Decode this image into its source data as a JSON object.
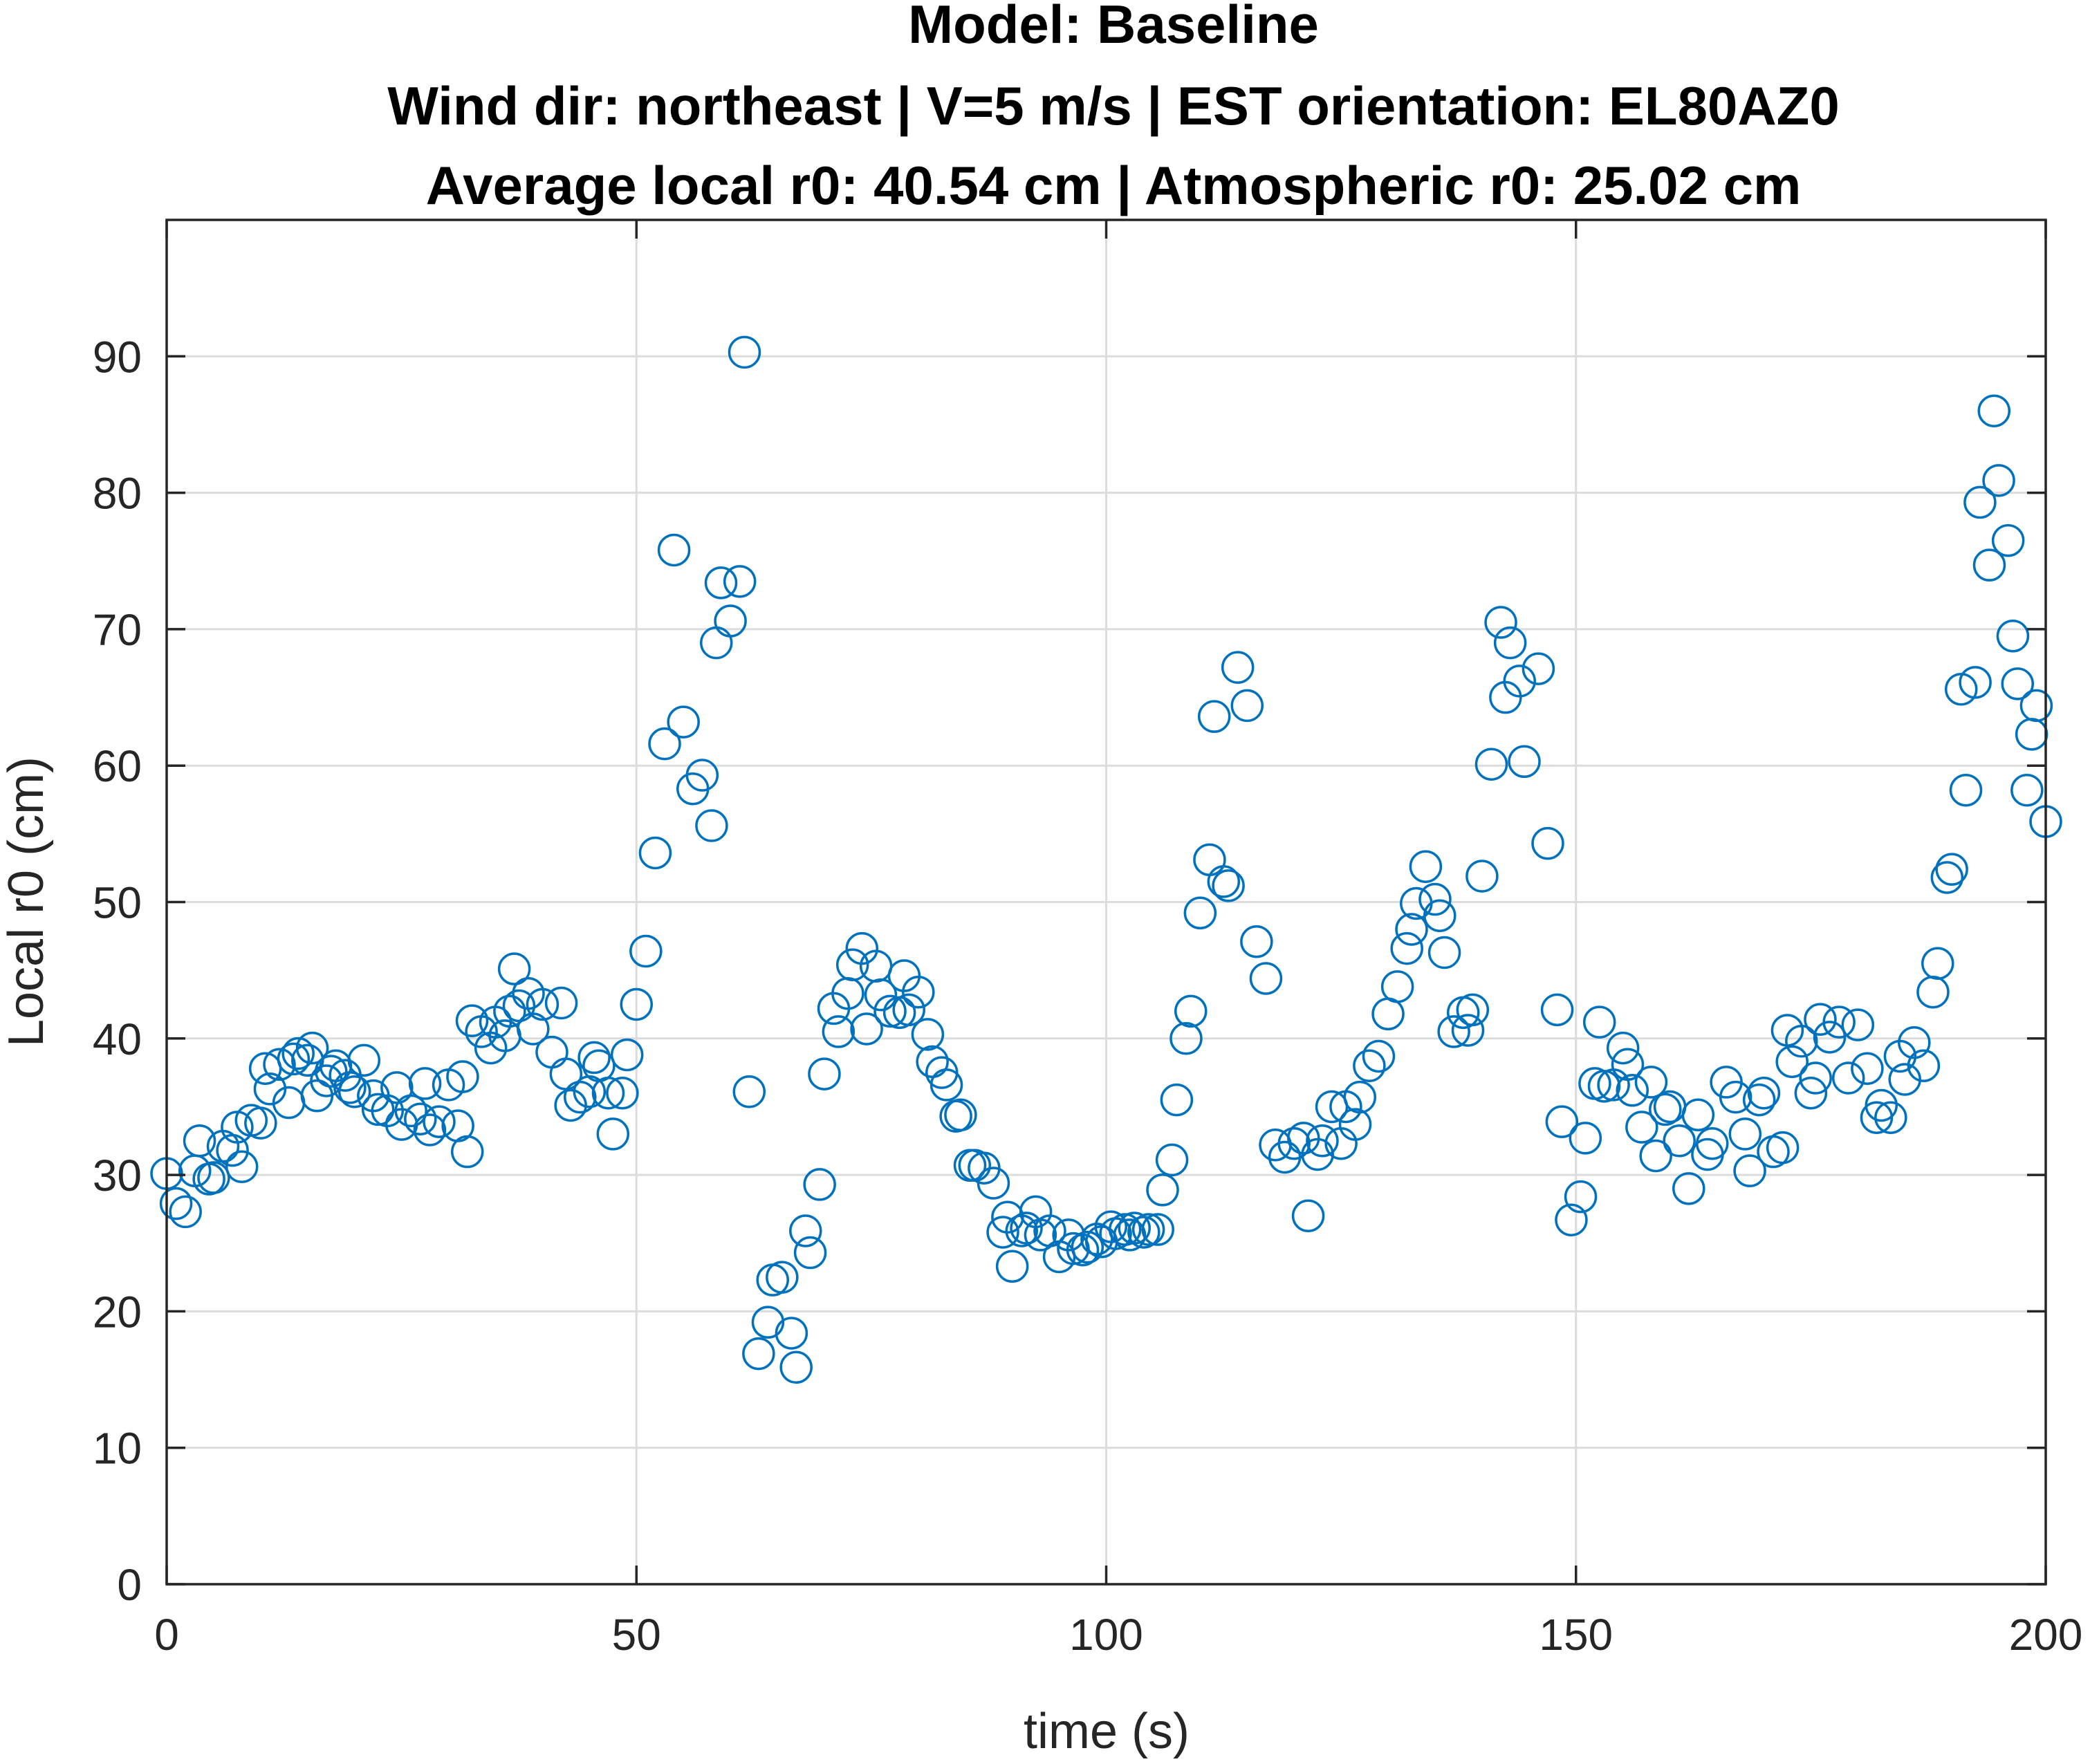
{
  "chart_data": {
    "type": "scatter",
    "title_lines": [
      "Model: Baseline",
      "Wind dir: northeast | V=5 m/s | EST orientation: EL80AZ0",
      "Average local r0: 40.54 cm | Atmospheric r0: 25.02 cm"
    ],
    "xlabel": "time (s)",
    "ylabel": "Local r0 (cm)",
    "xlim": [
      0,
      200
    ],
    "ylim": [
      0,
      100
    ],
    "xticks": [
      0,
      50,
      100,
      150,
      200
    ],
    "xtick_labels": [
      "0",
      "50",
      "100",
      "150",
      "200"
    ],
    "yticks": [
      0,
      10,
      20,
      30,
      40,
      50,
      60,
      70,
      80,
      90
    ],
    "ytick_labels": [
      "0",
      "10",
      "20",
      "30",
      "40",
      "50",
      "60",
      "70",
      "80",
      "90"
    ],
    "grid": true,
    "marker": "open-circle",
    "marker_color": "#0072BD",
    "series": [
      {
        "points": [
          [
            0,
            30.1
          ],
          [
            1,
            27.9
          ],
          [
            2,
            27.3
          ],
          [
            3,
            30.3
          ],
          [
            3.5,
            32.5
          ],
          [
            4.5,
            29.7
          ],
          [
            5,
            29.8
          ],
          [
            6,
            32.1
          ],
          [
            7,
            31.8
          ],
          [
            7.5,
            33.5
          ],
          [
            8,
            30.6
          ],
          [
            9,
            34.0
          ],
          [
            10,
            33.8
          ],
          [
            10.5,
            37.8
          ],
          [
            11,
            36.3
          ],
          [
            12,
            38.1
          ],
          [
            13,
            35.3
          ],
          [
            13.5,
            38.5
          ],
          [
            14,
            38.9
          ],
          [
            15,
            38.4
          ],
          [
            15.5,
            39.3
          ],
          [
            16,
            35.8
          ],
          [
            17,
            36.9
          ],
          [
            17.5,
            37.6
          ],
          [
            18,
            38.0
          ],
          [
            19,
            37.3
          ],
          [
            19.5,
            36.4
          ],
          [
            20,
            36.1
          ],
          [
            21,
            38.4
          ],
          [
            22,
            35.8
          ],
          [
            22.5,
            34.8
          ],
          [
            23.5,
            34.7
          ],
          [
            24.5,
            36.4
          ],
          [
            25,
            33.7
          ],
          [
            26,
            34.7
          ],
          [
            27,
            34.1
          ],
          [
            27.5,
            36.7
          ],
          [
            28,
            33.3
          ],
          [
            29,
            33.9
          ],
          [
            30,
            36.6
          ],
          [
            31,
            33.6
          ],
          [
            31.5,
            37.2
          ],
          [
            32,
            31.7
          ],
          [
            32.5,
            41.3
          ],
          [
            33.5,
            40.5
          ],
          [
            34.5,
            39.3
          ],
          [
            35,
            41.2
          ],
          [
            36,
            40.2
          ],
          [
            36.5,
            42.0
          ],
          [
            37,
            45.1
          ],
          [
            37.5,
            42.4
          ],
          [
            38.5,
            43.3
          ],
          [
            39,
            40.7
          ],
          [
            40,
            42.5
          ],
          [
            41,
            39.0
          ],
          [
            42,
            42.6
          ],
          [
            42.5,
            37.4
          ],
          [
            43,
            35.1
          ],
          [
            44,
            35.7
          ],
          [
            45,
            36.1
          ],
          [
            45.5,
            38.6
          ],
          [
            46,
            38.0
          ],
          [
            47,
            36.0
          ],
          [
            47.5,
            33.0
          ],
          [
            48.5,
            36.0
          ],
          [
            49,
            38.8
          ],
          [
            50,
            42.5
          ],
          [
            51,
            46.4
          ],
          [
            52,
            53.6
          ],
          [
            53,
            61.6
          ],
          [
            54,
            75.8
          ],
          [
            55,
            63.2
          ],
          [
            56,
            58.3
          ],
          [
            57,
            59.3
          ],
          [
            58,
            55.6
          ],
          [
            58.5,
            69.0
          ],
          [
            59,
            73.4
          ],
          [
            60,
            70.6
          ],
          [
            61,
            73.5
          ],
          [
            61.5,
            90.3
          ],
          [
            62,
            36.1
          ],
          [
            63,
            16.9
          ],
          [
            64,
            19.2
          ],
          [
            64.5,
            22.3
          ],
          [
            65.5,
            22.5
          ],
          [
            66.5,
            18.4
          ],
          [
            67,
            15.9
          ],
          [
            68,
            25.9
          ],
          [
            68.5,
            24.3
          ],
          [
            69.5,
            29.3
          ],
          [
            70,
            37.4
          ],
          [
            71,
            42.2
          ],
          [
            71.5,
            40.5
          ],
          [
            72.5,
            43.3
          ],
          [
            73,
            45.4
          ],
          [
            74,
            46.6
          ],
          [
            74.5,
            40.7
          ],
          [
            75.5,
            45.3
          ],
          [
            76,
            43.2
          ],
          [
            77,
            42.0
          ],
          [
            78,
            41.9
          ],
          [
            78.5,
            44.6
          ],
          [
            79,
            42.1
          ],
          [
            80,
            43.4
          ],
          [
            81,
            40.3
          ],
          [
            81.5,
            38.3
          ],
          [
            82.5,
            37.5
          ],
          [
            83,
            36.6
          ],
          [
            84,
            34.3
          ],
          [
            84.5,
            34.4
          ],
          [
            85.5,
            30.7
          ],
          [
            86,
            30.7
          ],
          [
            87,
            30.5
          ],
          [
            88,
            29.4
          ],
          [
            89,
            25.8
          ],
          [
            89.5,
            26.9
          ],
          [
            90,
            23.3
          ],
          [
            91,
            25.9
          ],
          [
            91.5,
            26.1
          ],
          [
            92.5,
            27.3
          ],
          [
            93,
            25.6
          ],
          [
            94,
            25.9
          ],
          [
            95,
            24.0
          ],
          [
            96,
            25.6
          ],
          [
            96.5,
            24.6
          ],
          [
            97.5,
            24.5
          ],
          [
            98,
            24.7
          ],
          [
            99,
            25.3
          ],
          [
            99.5,
            25.1
          ],
          [
            100.5,
            26.2
          ],
          [
            101,
            25.7
          ],
          [
            102,
            26.0
          ],
          [
            102.5,
            25.6
          ],
          [
            103,
            26.1
          ],
          [
            104,
            25.8
          ],
          [
            104.5,
            26.0
          ],
          [
            105.5,
            26.0
          ],
          [
            106,
            28.9
          ],
          [
            107,
            31.1
          ],
          [
            107.5,
            35.5
          ],
          [
            108.5,
            40.0
          ],
          [
            109,
            42.0
          ],
          [
            110,
            49.2
          ],
          [
            111,
            53.1
          ],
          [
            111.5,
            63.6
          ],
          [
            112.5,
            51.5
          ],
          [
            113,
            51.2
          ],
          [
            114,
            67.2
          ],
          [
            115,
            64.4
          ],
          [
            116,
            47.1
          ],
          [
            117,
            44.4
          ],
          [
            118,
            32.2
          ],
          [
            119,
            31.3
          ],
          [
            120,
            32.3
          ],
          [
            121,
            32.7
          ],
          [
            121.5,
            27.0
          ],
          [
            122.5,
            31.5
          ],
          [
            123,
            32.5
          ],
          [
            124,
            35.0
          ],
          [
            125,
            32.3
          ],
          [
            125.5,
            35.0
          ],
          [
            126.5,
            33.7
          ],
          [
            127,
            35.7
          ],
          [
            128,
            38.0
          ],
          [
            129,
            38.7
          ],
          [
            130,
            41.8
          ],
          [
            131,
            43.8
          ],
          [
            132,
            46.6
          ],
          [
            132.5,
            48.0
          ],
          [
            133,
            49.9
          ],
          [
            134,
            52.6
          ],
          [
            135,
            50.2
          ],
          [
            135.5,
            49.0
          ],
          [
            136,
            46.3
          ],
          [
            137,
            40.5
          ],
          [
            138,
            41.9
          ],
          [
            138.5,
            40.6
          ],
          [
            139,
            42.1
          ],
          [
            140,
            51.9
          ],
          [
            141,
            60.1
          ],
          [
            142,
            70.5
          ],
          [
            142.5,
            65.0
          ],
          [
            143,
            69.0
          ],
          [
            144,
            66.2
          ],
          [
            144.5,
            60.3
          ],
          [
            146,
            67.1
          ],
          [
            147,
            54.3
          ],
          [
            148,
            42.1
          ],
          [
            148.5,
            33.9
          ],
          [
            149.5,
            26.7
          ],
          [
            150.5,
            28.4
          ],
          [
            151,
            32.7
          ],
          [
            152,
            36.7
          ],
          [
            152.5,
            41.2
          ],
          [
            153,
            36.5
          ],
          [
            154,
            36.6
          ],
          [
            155,
            39.3
          ],
          [
            155.5,
            38.1
          ],
          [
            156,
            36.2
          ],
          [
            157,
            33.5
          ],
          [
            158,
            36.8
          ],
          [
            158.5,
            31.4
          ],
          [
            159.5,
            34.8
          ],
          [
            160,
            35.0
          ],
          [
            161,
            32.5
          ],
          [
            162,
            29.0
          ],
          [
            163,
            34.4
          ],
          [
            164,
            31.5
          ],
          [
            164.5,
            32.3
          ],
          [
            166,
            36.8
          ],
          [
            167,
            35.7
          ],
          [
            168,
            33.0
          ],
          [
            168.5,
            30.3
          ],
          [
            169.5,
            35.5
          ],
          [
            170,
            36.0
          ],
          [
            171,
            31.7
          ],
          [
            172,
            32.0
          ],
          [
            172.5,
            40.6
          ],
          [
            173,
            38.3
          ],
          [
            174,
            39.8
          ],
          [
            175,
            36.0
          ],
          [
            175.5,
            37.1
          ],
          [
            176,
            41.4
          ],
          [
            177,
            40.1
          ],
          [
            178,
            41.2
          ],
          [
            179,
            37.1
          ],
          [
            180,
            41.0
          ],
          [
            181,
            37.8
          ],
          [
            182,
            34.2
          ],
          [
            182.5,
            35.1
          ],
          [
            183.5,
            34.2
          ],
          [
            184.5,
            38.7
          ],
          [
            185,
            37.0
          ],
          [
            186,
            39.7
          ],
          [
            187,
            38.0
          ],
          [
            188,
            43.4
          ],
          [
            188.5,
            45.5
          ],
          [
            189.5,
            51.8
          ],
          [
            190,
            52.4
          ],
          [
            191,
            65.6
          ],
          [
            191.5,
            58.2
          ],
          [
            192.5,
            66.1
          ],
          [
            193,
            79.3
          ],
          [
            194,
            74.7
          ],
          [
            194.5,
            86.0
          ],
          [
            195,
            80.9
          ],
          [
            196,
            76.5
          ],
          [
            196.5,
            69.5
          ],
          [
            197,
            66.0
          ],
          [
            198,
            58.2
          ],
          [
            198.5,
            62.3
          ],
          [
            199,
            64.4
          ],
          [
            200,
            55.9
          ]
        ]
      }
    ]
  }
}
